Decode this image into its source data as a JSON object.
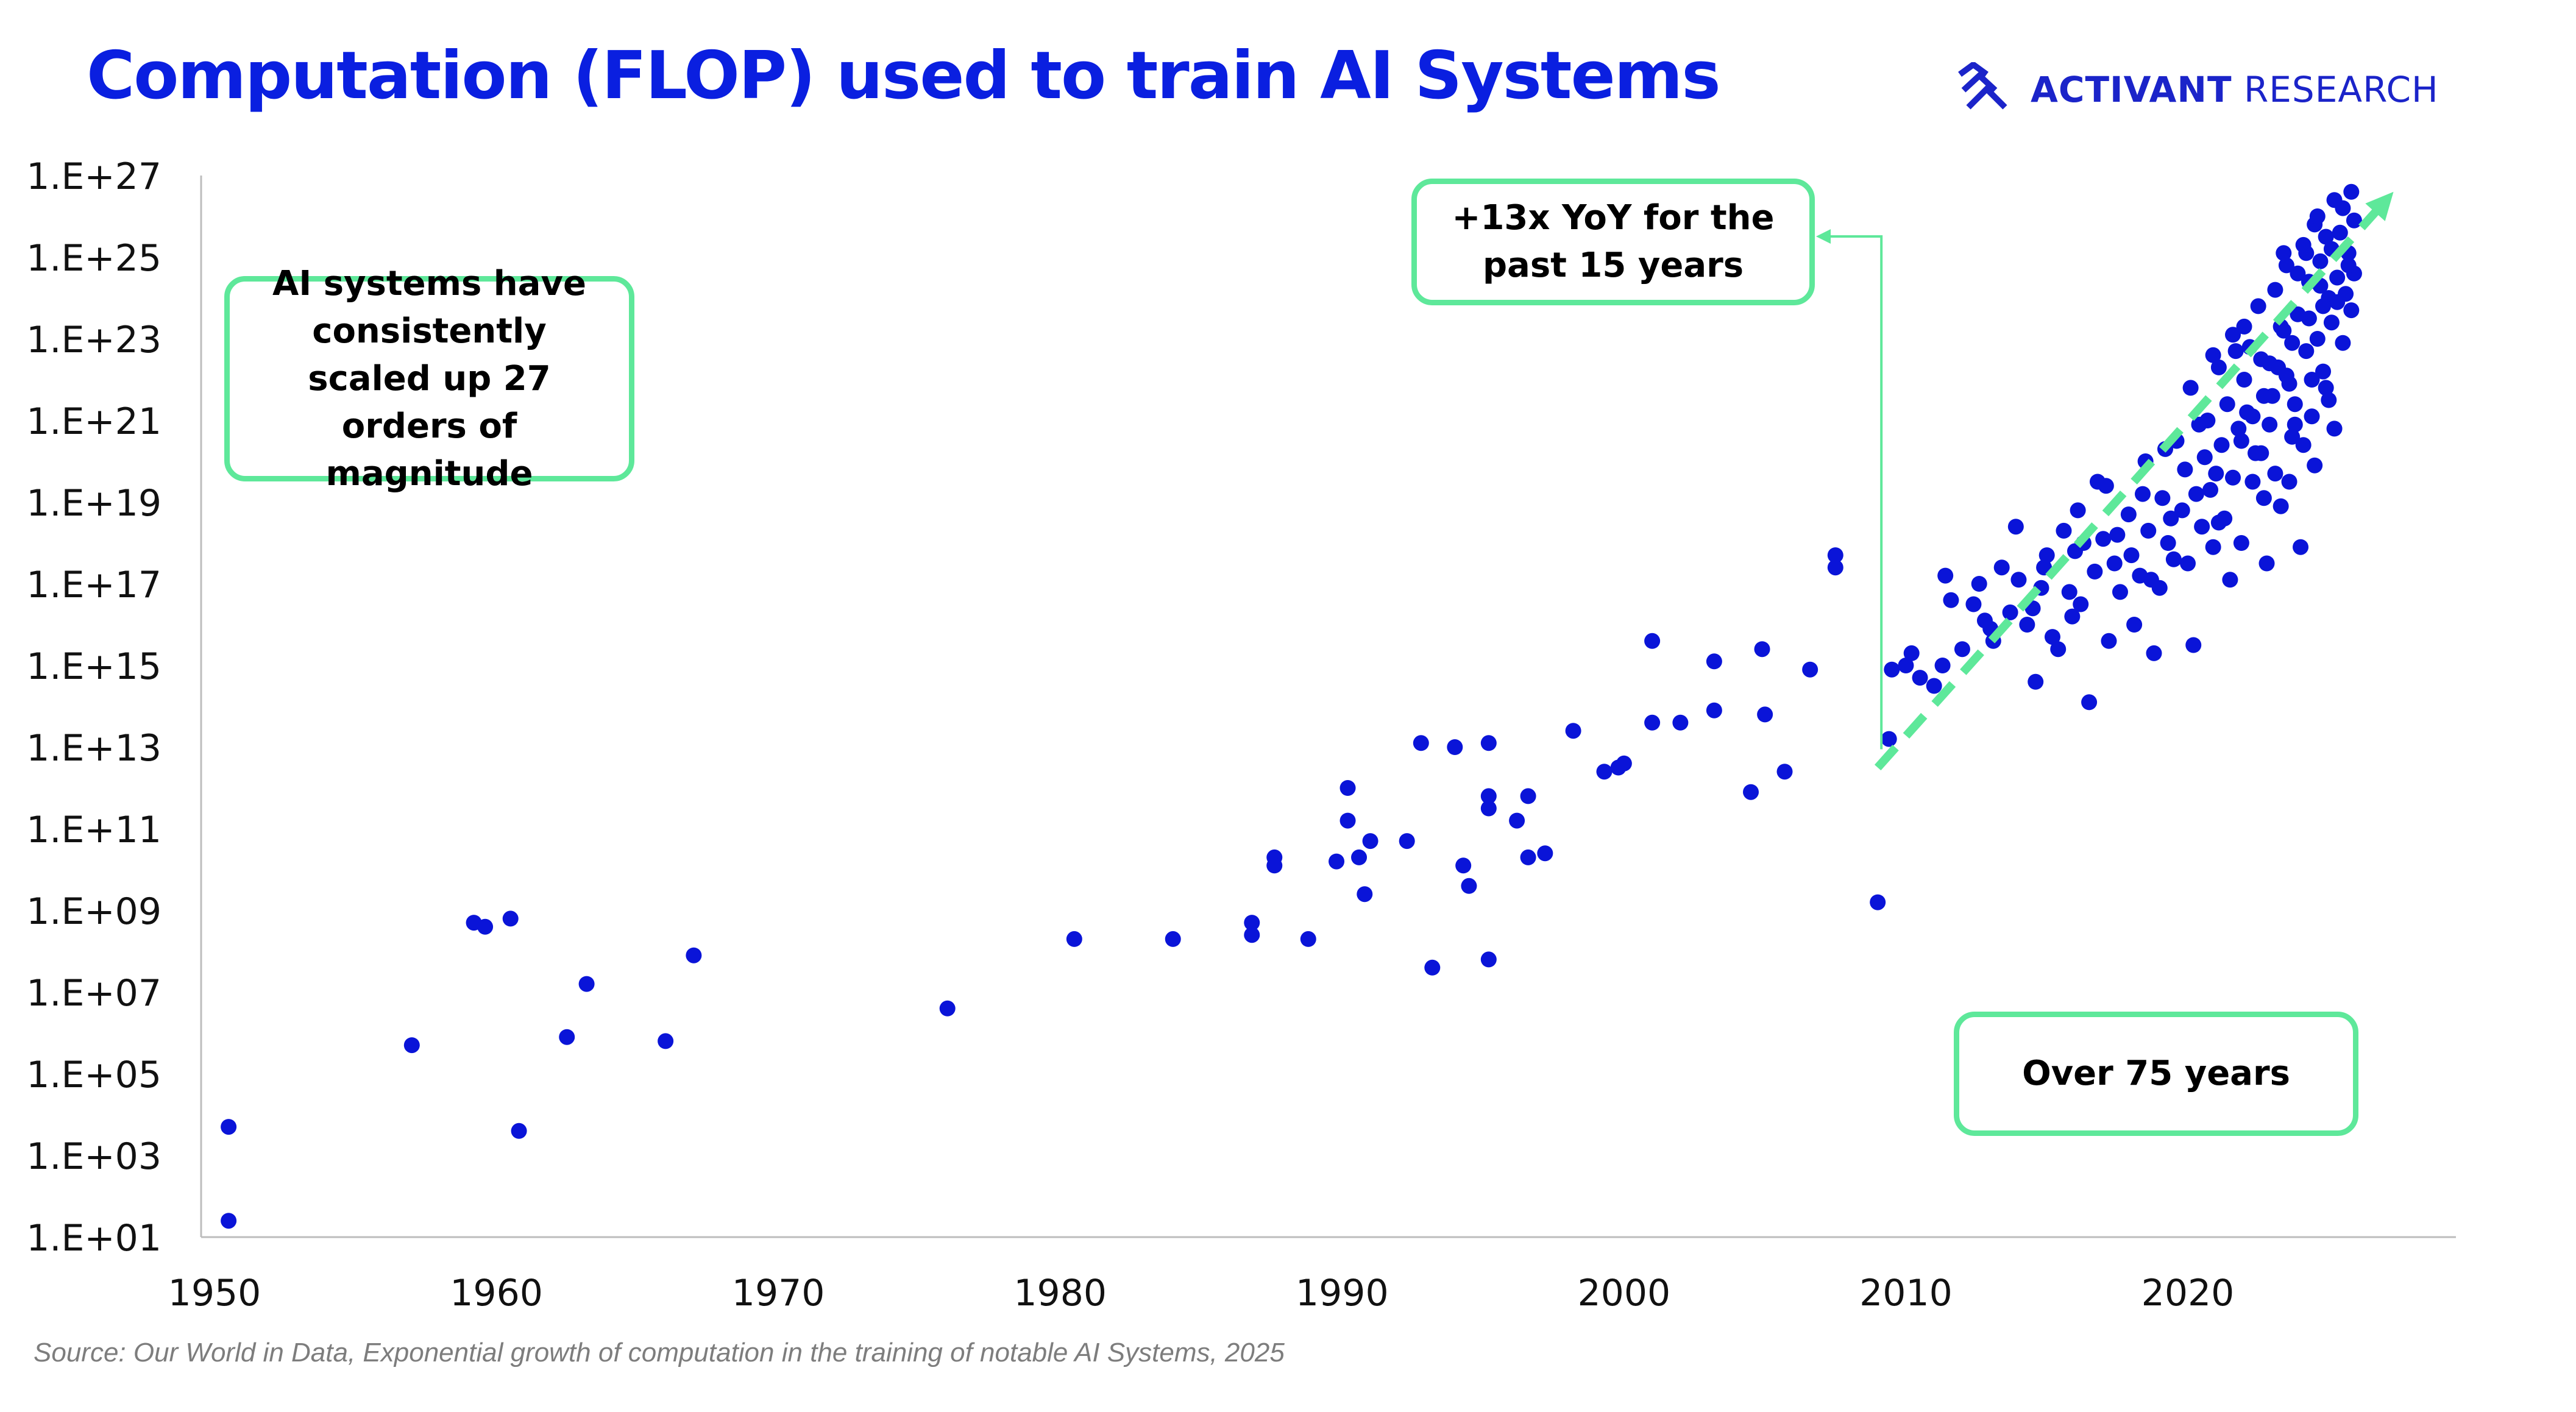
{
  "title": "Computation (FLOP) used to train AI Systems",
  "brand": {
    "bold": "ACTIVANT",
    "light": " RESEARCH",
    "icon": "activant-chevron-logo"
  },
  "annotations": {
    "orders": "AI systems have consistently scaled up 27 orders of magnitude",
    "yoy": "+13x YoY for the past 15 years",
    "years": "Over 75 years"
  },
  "source": "Source: Our World in Data, Exponential growth of computation in the training of notable AI Systems, 2025",
  "colors": {
    "title": "#0a1fe0",
    "points": "#0a14d8",
    "accent": "#5ee89a",
    "axis": "#bdbdbd"
  },
  "chart_data": {
    "type": "scatter",
    "title": "Computation (FLOP) used to train AI Systems",
    "xlim": [
      1950,
      2026
    ],
    "ylim_log10": [
      1,
      27
    ],
    "x_ticks": [
      1950,
      1960,
      1970,
      1980,
      1990,
      2000,
      2010,
      2020
    ],
    "y_ticks": [
      "1.E+01",
      "1.E+03",
      "1.E+05",
      "1.E+07",
      "1.E+09",
      "1.E+11",
      "1.E+13",
      "1.E+15",
      "1.E+17",
      "1.E+19",
      "1.E+21",
      "1.E+23",
      "1.E+25",
      "1.E+27"
    ],
    "y_scale": "log",
    "grid": false,
    "trend": {
      "from": [
        2009,
        12.5
      ],
      "to": [
        2026,
        26.6
      ]
    },
    "series": [
      {
        "points": [
          [
            1950.5,
            3.7
          ],
          [
            1950.5,
            1.4
          ],
          [
            1957,
            5.7
          ],
          [
            1959.2,
            8.7
          ],
          [
            1959.6,
            8.6
          ],
          [
            1960.5,
            8.8
          ],
          [
            1960.8,
            3.6
          ],
          [
            1962.5,
            5.9
          ],
          [
            1963.2,
            7.2
          ],
          [
            1966,
            5.8
          ],
          [
            1967,
            7.9
          ],
          [
            1976,
            6.6
          ],
          [
            1980.5,
            8.3
          ],
          [
            1984,
            8.3
          ],
          [
            1986.8,
            8.4
          ],
          [
            1986.8,
            8.7
          ],
          [
            1987.6,
            10.3
          ],
          [
            1987.6,
            10.1
          ],
          [
            1988.8,
            8.3
          ],
          [
            1989.8,
            10.2
          ],
          [
            1990.2,
            11.2
          ],
          [
            1990.2,
            12
          ],
          [
            1990.6,
            10.3
          ],
          [
            1990.8,
            9.4
          ],
          [
            1991,
            10.7
          ],
          [
            1992.3,
            10.7
          ],
          [
            1992.8,
            13.1
          ],
          [
            1993.2,
            7.6
          ],
          [
            1994,
            13
          ],
          [
            1994.3,
            10.1
          ],
          [
            1994.5,
            9.6
          ],
          [
            1995.2,
            13.1
          ],
          [
            1995.2,
            11.8
          ],
          [
            1995.2,
            11.5
          ],
          [
            1995.2,
            7.8
          ],
          [
            1996.2,
            11.2
          ],
          [
            1996.6,
            11.8
          ],
          [
            1996.6,
            10.3
          ],
          [
            1997.2,
            10.4
          ],
          [
            1998.2,
            13.4
          ],
          [
            1999.3,
            12.4
          ],
          [
            1999.8,
            12.5
          ],
          [
            2000,
            12.6
          ],
          [
            2001,
            15.6
          ],
          [
            2001,
            13.6
          ],
          [
            2002,
            13.6
          ],
          [
            2003.2,
            15.1
          ],
          [
            2003.2,
            13.9
          ],
          [
            2004.5,
            11.9
          ],
          [
            2004.9,
            15.4
          ],
          [
            2005,
            13.8
          ],
          [
            2005.7,
            12.4
          ],
          [
            2006.6,
            14.9
          ],
          [
            2007.5,
            17.7
          ],
          [
            2007.5,
            17.4
          ],
          [
            2009,
            9.2
          ],
          [
            2009.4,
            13.2
          ],
          [
            2009.5,
            14.9
          ],
          [
            2010,
            15
          ],
          [
            2010.2,
            15.3
          ],
          [
            2010.5,
            14.7
          ],
          [
            2011,
            14.5
          ],
          [
            2011.3,
            15
          ],
          [
            2011.6,
            16.6
          ],
          [
            2012,
            15.4
          ],
          [
            2012.4,
            16.5
          ],
          [
            2012.8,
            16.1
          ],
          [
            2013,
            15.9
          ],
          [
            2013.4,
            17.4
          ],
          [
            2013.7,
            16.3
          ],
          [
            2014,
            17.1
          ],
          [
            2014.3,
            16
          ],
          [
            2014.6,
            14.6
          ],
          [
            2014.8,
            16.9
          ],
          [
            2015,
            17.7
          ],
          [
            2015.2,
            15.7
          ],
          [
            2015.4,
            15.4
          ],
          [
            2015.6,
            18.3
          ],
          [
            2015.8,
            16.8
          ],
          [
            2016,
            17.8
          ],
          [
            2016.2,
            16.5
          ],
          [
            2016.3,
            18
          ],
          [
            2016.5,
            14.1
          ],
          [
            2016.8,
            19.5
          ],
          [
            2017,
            18.1
          ],
          [
            2017.2,
            15.6
          ],
          [
            2017.4,
            17.5
          ],
          [
            2017.6,
            16.8
          ],
          [
            2017.9,
            18.7
          ],
          [
            2018.1,
            16
          ],
          [
            2018.3,
            17.2
          ],
          [
            2018.5,
            20
          ],
          [
            2018.6,
            18.3
          ],
          [
            2018.8,
            15.3
          ],
          [
            2019,
            16.9
          ],
          [
            2019.1,
            19.1
          ],
          [
            2019.3,
            18
          ],
          [
            2019.5,
            17.6
          ],
          [
            2019.6,
            20.5
          ],
          [
            2019.8,
            18.8
          ],
          [
            2020,
            17.5
          ],
          [
            2020.2,
            15.5
          ],
          [
            2020.3,
            19.2
          ],
          [
            2020.5,
            18.4
          ],
          [
            2020.7,
            21
          ],
          [
            2020.9,
            17.9
          ],
          [
            2021,
            19.7
          ],
          [
            2021.2,
            20.4
          ],
          [
            2021.3,
            18.6
          ],
          [
            2021.5,
            17.1
          ],
          [
            2021.6,
            19.6
          ],
          [
            2021.8,
            20.8
          ],
          [
            2021.9,
            18
          ],
          [
            2022,
            22
          ],
          [
            2022.1,
            21.2
          ],
          [
            2022.3,
            19.5
          ],
          [
            2022.4,
            20.2
          ],
          [
            2022.6,
            22.5
          ],
          [
            2022.7,
            19.1
          ],
          [
            2022.8,
            17.5
          ],
          [
            2022.9,
            20.9
          ],
          [
            2023,
            21.6
          ],
          [
            2023.1,
            19.7
          ],
          [
            2023.2,
            22.3
          ],
          [
            2023.3,
            18.9
          ],
          [
            2023.4,
            23.2
          ],
          [
            2023.5,
            22.1
          ],
          [
            2023.6,
            19.5
          ],
          [
            2023.7,
            20.6
          ],
          [
            2023.8,
            21.4
          ],
          [
            2023.9,
            23.6
          ],
          [
            2024,
            17.9
          ],
          [
            2024.1,
            20.4
          ],
          [
            2024.2,
            22.7
          ],
          [
            2024.3,
            24.4
          ],
          [
            2024.4,
            21.1
          ],
          [
            2024.5,
            19.9
          ],
          [
            2024.6,
            23
          ],
          [
            2024.7,
            24.9
          ],
          [
            2024.8,
            22.2
          ],
          [
            2024.9,
            21.8
          ],
          [
            2025,
            24
          ],
          [
            2025.1,
            23.4
          ],
          [
            2025.2,
            20.8
          ],
          [
            2025.3,
            24.5
          ],
          [
            2025.4,
            25.6
          ],
          [
            2025.5,
            22.9
          ],
          [
            2025.6,
            24.1
          ],
          [
            2025.7,
            25.1
          ],
          [
            2025.8,
            23.7
          ],
          [
            2025.9,
            24.6
          ],
          [
            2011.4,
            17.2
          ],
          [
            2012.6,
            17
          ],
          [
            2013.9,
            18.4
          ],
          [
            2014.9,
            17.4
          ],
          [
            2016.1,
            18.8
          ],
          [
            2017.1,
            19.4
          ],
          [
            2018,
            17.7
          ],
          [
            2018.4,
            19.2
          ],
          [
            2019.2,
            20.3
          ],
          [
            2019.9,
            19.8
          ],
          [
            2020.1,
            21.8
          ],
          [
            2020.4,
            20.9
          ],
          [
            2020.8,
            19.3
          ],
          [
            2021.1,
            22.3
          ],
          [
            2021.4,
            21.4
          ],
          [
            2021.7,
            22.7
          ],
          [
            2022,
            23.3
          ],
          [
            2022.2,
            22.8
          ],
          [
            2022.5,
            23.8
          ],
          [
            2022.9,
            22.4
          ],
          [
            2023.1,
            24.2
          ],
          [
            2023.3,
            23.3
          ],
          [
            2023.5,
            24.8
          ],
          [
            2023.7,
            22.9
          ],
          [
            2023.9,
            24.6
          ],
          [
            2024.1,
            25.3
          ],
          [
            2024.3,
            23.5
          ],
          [
            2024.5,
            25.8
          ],
          [
            2024.7,
            24.3
          ],
          [
            2024.9,
            25.5
          ],
          [
            2025.1,
            25.2
          ],
          [
            2025.3,
            23.9
          ],
          [
            2025.5,
            26.2
          ],
          [
            2025.7,
            24.8
          ],
          [
            2025.9,
            25.9
          ],
          [
            2024.2,
            25.1
          ],
          [
            2023.6,
            21.9
          ],
          [
            2022.7,
            21.6
          ],
          [
            2021.9,
            20.5
          ],
          [
            2020.6,
            20.1
          ],
          [
            2019.4,
            18.6
          ],
          [
            2018.7,
            17.1
          ],
          [
            2017.5,
            18.2
          ],
          [
            2016.7,
            17.3
          ],
          [
            2015.9,
            16.2
          ],
          [
            2014.5,
            16.4
          ],
          [
            2013.1,
            15.6
          ],
          [
            2023.4,
            25.1
          ],
          [
            2024.6,
            26
          ],
          [
            2025.2,
            26.4
          ],
          [
            2025.8,
            26.6
          ],
          [
            2025,
            21.5
          ],
          [
            2024.4,
            22
          ],
          [
            2023.8,
            20.9
          ],
          [
            2022.3,
            21.1
          ],
          [
            2021.6,
            23.1
          ],
          [
            2020.9,
            22.6
          ],
          [
            2021.1,
            18.5
          ],
          [
            2022.6,
            20.2
          ],
          [
            2024.8,
            23.8
          ]
        ]
      }
    ]
  }
}
